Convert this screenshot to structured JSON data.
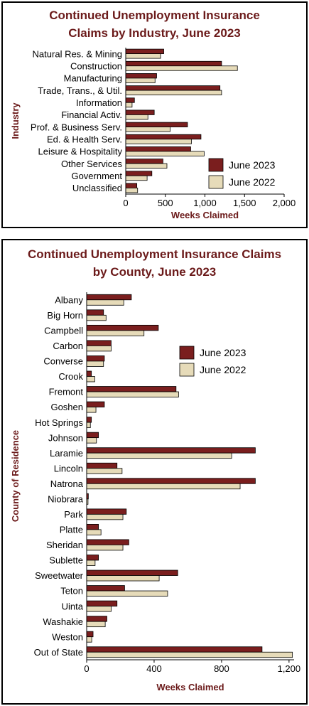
{
  "colors": {
    "june2023": "#7a1e1e",
    "june2022": "#e6dbb9",
    "title": "#6b1a1a",
    "axis_label": "#6b1a1a"
  },
  "chart_data": [
    {
      "type": "bar",
      "orientation": "horizontal",
      "title_line1": "Continued Unemployment Insurance",
      "title_line2": "Claims by Industry, June 2023",
      "xlabel": "Weeks Claimed",
      "ylabel": "Industry",
      "xlim": [
        0,
        2000
      ],
      "xticks": [
        0,
        500,
        1000,
        1500,
        2000
      ],
      "xtick_labels": [
        "0",
        "500",
        "1,000",
        "1,500",
        "2,000"
      ],
      "legend_position": "bottom-right",
      "categories": [
        "Natural Res. & Mining",
        "Construction",
        "Manufacturing",
        "Trade, Trans., & Util.",
        "Information",
        "Financial Activ.",
        "Prof. & Business Serv.",
        "Ed. & Health Serv.",
        "Leisure & Hospitality",
        "Other Services",
        "Government",
        "Unclassified"
      ],
      "series": [
        {
          "name": "June 2023",
          "values": [
            480,
            1210,
            390,
            1190,
            110,
            360,
            780,
            950,
            820,
            470,
            330,
            140
          ]
        },
        {
          "name": "June 2022",
          "values": [
            440,
            1410,
            370,
            1210,
            80,
            280,
            560,
            830,
            990,
            520,
            270,
            150
          ]
        }
      ]
    },
    {
      "type": "bar",
      "orientation": "horizontal",
      "title_line1": "Continued Unemployment Insurance Claims",
      "title_line2": "by County, June 2023",
      "xlabel": "Weeks Claimed",
      "ylabel": "County of Residence",
      "xlim": [
        0,
        1230
      ],
      "xticks": [
        0,
        400,
        800,
        1200
      ],
      "xtick_labels": [
        "0",
        "400",
        "800",
        "1,200"
      ],
      "legend_position": "top-right",
      "categories": [
        "Albany",
        "Big Horn",
        "Campbell",
        "Carbon",
        "Converse",
        "Crook",
        "Fremont",
        "Goshen",
        "Hot Springs",
        "Johnson",
        "Laramie",
        "Lincoln",
        "Natrona",
        "Niobrara",
        "Park",
        "Platte",
        "Sheridan",
        "Sublette",
        "Sweetwater",
        "Teton",
        "Uinta",
        "Washakie",
        "Weston",
        "Out of State"
      ],
      "series": [
        {
          "name": "June 2023",
          "values": [
            265,
            100,
            425,
            145,
            105,
            28,
            530,
            105,
            28,
            70,
            1000,
            180,
            1000,
            10,
            235,
            70,
            250,
            70,
            540,
            225,
            180,
            120,
            38,
            1040
          ]
        },
        {
          "name": "June 2022",
          "values": [
            220,
            115,
            340,
            145,
            100,
            48,
            545,
            55,
            22,
            58,
            860,
            210,
            910,
            8,
            215,
            85,
            215,
            50,
            430,
            480,
            145,
            110,
            30,
            1220
          ]
        }
      ]
    }
  ]
}
